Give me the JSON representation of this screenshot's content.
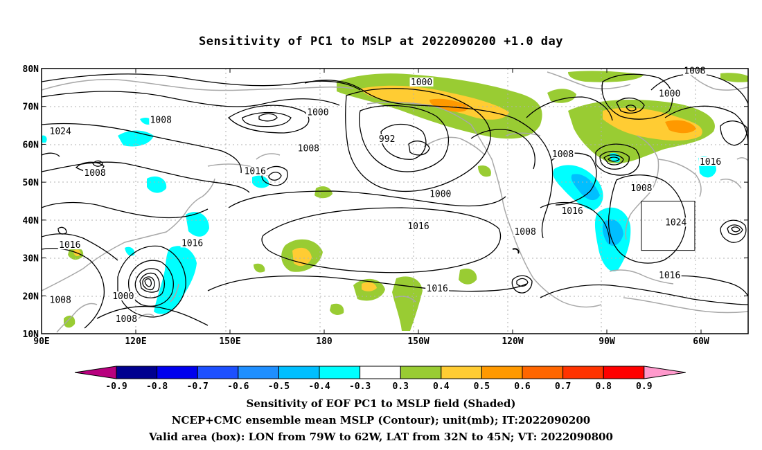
{
  "title": "Sensitivity of PC1 to MSLP at 2022090200 +1.0 day",
  "map": {
    "lon_ticks": [
      {
        "lon": 90,
        "label": "90E"
      },
      {
        "lon": 120,
        "label": "120E"
      },
      {
        "lon": 150,
        "label": "150E"
      },
      {
        "lon": 180,
        "label": "180"
      },
      {
        "lon": 210,
        "label": "150W"
      },
      {
        "lon": 240,
        "label": "120W"
      },
      {
        "lon": 270,
        "label": "90W"
      },
      {
        "lon": 300,
        "label": "60W"
      }
    ],
    "lat_ticks": [
      {
        "lat": 80,
        "label": "80N"
      },
      {
        "lat": 70,
        "label": "70N"
      },
      {
        "lat": 60,
        "label": "60N"
      },
      {
        "lat": 50,
        "label": "50N"
      },
      {
        "lat": 40,
        "label": "40N"
      },
      {
        "lat": 30,
        "label": "30N"
      },
      {
        "lat": 20,
        "label": "20N"
      },
      {
        "lat": 10,
        "label": "10N"
      }
    ],
    "lon_range": [
      90,
      315
    ],
    "lat_range": [
      10,
      80
    ],
    "grid": true,
    "contour_labels": [
      {
        "lon": 211,
        "lat": 76,
        "text": "1000"
      },
      {
        "lon": 178,
        "lat": 68,
        "text": "1000"
      },
      {
        "lon": 128,
        "lat": 66,
        "text": "1008"
      },
      {
        "lon": 96,
        "lat": 63,
        "text": "1024"
      },
      {
        "lon": 175,
        "lat": 58.5,
        "text": "1008"
      },
      {
        "lon": 200,
        "lat": 61,
        "text": "992"
      },
      {
        "lon": 107,
        "lat": 52,
        "text": "1008"
      },
      {
        "lon": 158,
        "lat": 52.5,
        "text": "1016"
      },
      {
        "lon": 217,
        "lat": 46.5,
        "text": "1000"
      },
      {
        "lon": 256,
        "lat": 57,
        "text": "1008"
      },
      {
        "lon": 290,
        "lat": 73,
        "text": "1000"
      },
      {
        "lon": 298,
        "lat": 79,
        "text": "1008"
      },
      {
        "lon": 281,
        "lat": 48,
        "text": "1008"
      },
      {
        "lon": 303,
        "lat": 55,
        "text": "1016"
      },
      {
        "lon": 259,
        "lat": 42,
        "text": "1016"
      },
      {
        "lon": 292,
        "lat": 39,
        "text": "1024"
      },
      {
        "lon": 210,
        "lat": 38,
        "text": "1016"
      },
      {
        "lon": 244,
        "lat": 36.5,
        "text": "1008"
      },
      {
        "lon": 99,
        "lat": 33,
        "text": "1016"
      },
      {
        "lon": 138,
        "lat": 33.5,
        "text": "1016"
      },
      {
        "lon": 116,
        "lat": 19.5,
        "text": "1000"
      },
      {
        "lon": 96,
        "lat": 18.5,
        "text": "1008"
      },
      {
        "lon": 117,
        "lat": 13.5,
        "text": "1008"
      },
      {
        "lon": 216,
        "lat": 21.5,
        "text": "1016"
      },
      {
        "lon": 290,
        "lat": 25,
        "text": "1016"
      }
    ],
    "valid_box": {
      "lon_min": 281,
      "lon_max": 298,
      "lat_min": 32,
      "lat_max": 45
    }
  },
  "colorbar": {
    "labels": [
      "-0.9",
      "-0.8",
      "-0.7",
      "-0.6",
      "-0.5",
      "-0.4",
      "-0.3",
      "0.3",
      "0.4",
      "0.5",
      "0.6",
      "0.7",
      "0.8",
      "0.9"
    ],
    "colors": [
      "#00008f",
      "#0000ee",
      "#1d50ff",
      "#1f8fff",
      "#00bfff",
      "#00ffff",
      "#ffffff",
      "#99cc33",
      "#ffcc33",
      "#ff9900",
      "#ff6600",
      "#ff3300",
      "#ff0000"
    ],
    "low_end_color": "#b8007e",
    "high_end_color": "#ff99cc"
  },
  "captions": [
    "Sensitivity of EOF PC1 to MSLP field (Shaded)",
    "NCEP+CMC ensemble mean MSLP (Contour); unit(mb); IT:2022090200",
    "Valid area (box): LON from 79W to 62W, LAT from 32N to 45N; VT: 2022090800"
  ]
}
